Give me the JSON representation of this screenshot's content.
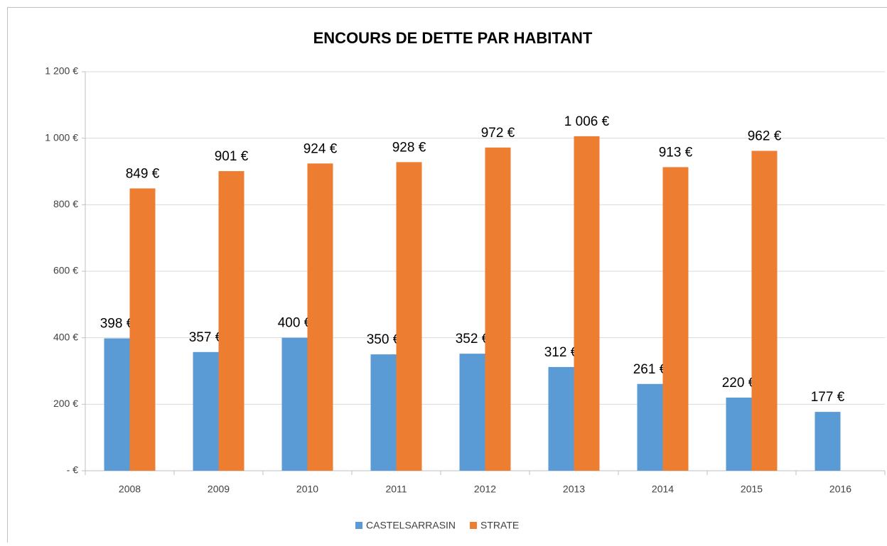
{
  "chart_data": {
    "type": "bar",
    "title": "ENCOURS DE DETTE PAR HABITANT",
    "categories": [
      "2008",
      "2009",
      "2010",
      "2011",
      "2012",
      "2013",
      "2014",
      "2015",
      "2016"
    ],
    "series": [
      {
        "name": "CASTELSARRASIN",
        "color": "#5b9bd5",
        "values": [
          398,
          357,
          400,
          350,
          352,
          312,
          261,
          220,
          177
        ],
        "value_labels": [
          "398 €",
          "357 €",
          "400 €",
          "350 €",
          "352 €",
          "312 €",
          "261 €",
          "220 €",
          "177 €"
        ]
      },
      {
        "name": "STRATE",
        "color": "#ed7d31",
        "values": [
          849,
          901,
          924,
          928,
          972,
          1006,
          913,
          962,
          null
        ],
        "value_labels": [
          "849 €",
          "901 €",
          "924 €",
          "928 €",
          "972 €",
          "1 006 €",
          "913 €",
          "962 €",
          null
        ]
      }
    ],
    "ylim": [
      0,
      1200
    ],
    "yticks": [
      {
        "value": 0,
        "label": "- €"
      },
      {
        "value": 200,
        "label": "200 €"
      },
      {
        "value": 400,
        "label": "400 €"
      },
      {
        "value": 600,
        "label": "600 €"
      },
      {
        "value": 800,
        "label": "800 €"
      },
      {
        "value": 1000,
        "label": "1 000 €"
      },
      {
        "value": 1200,
        "label": "1 200 €"
      }
    ],
    "grid": true,
    "legend": "bottom"
  }
}
